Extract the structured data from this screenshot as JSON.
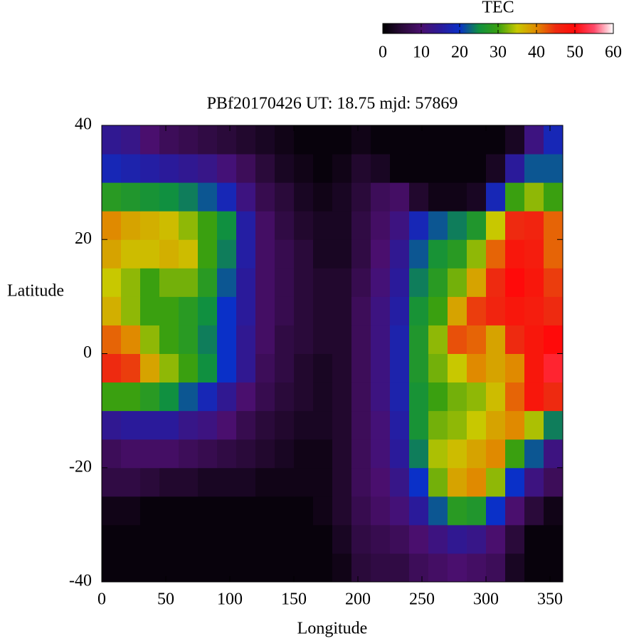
{
  "chart_data": {
    "type": "heatmap",
    "title": "PBf20170426  UT: 18.75  mjd: 57869",
    "xlabel": "Longitude",
    "ylabel": "Latitude",
    "colorbar_label": "TEC",
    "x": [
      0,
      15,
      30,
      45,
      60,
      75,
      90,
      105,
      120,
      135,
      150,
      165,
      180,
      195,
      210,
      225,
      240,
      255,
      270,
      285,
      300,
      315,
      330,
      345
    ],
    "y": [
      -40,
      -35,
      -30,
      -25,
      -20,
      -15,
      -10,
      -5,
      0,
      5,
      10,
      15,
      20,
      25,
      30,
      35
    ],
    "z": [
      [
        1,
        1,
        1,
        1,
        1,
        1,
        1,
        1,
        1,
        1,
        1,
        1,
        2,
        5,
        6,
        6,
        8,
        9,
        10,
        9,
        8,
        3,
        1,
        1
      ],
      [
        1,
        1,
        1,
        1,
        1,
        1,
        1,
        1,
        1,
        1,
        1,
        1,
        3,
        6,
        7,
        8,
        10,
        12,
        14,
        13,
        10,
        5,
        1,
        1
      ],
      [
        2,
        2,
        1,
        1,
        1,
        1,
        1,
        1,
        1,
        1,
        1,
        2,
        4,
        7,
        9,
        11,
        15,
        22,
        28,
        27,
        20,
        10,
        5,
        2
      ],
      [
        6,
        6,
        5,
        4,
        4,
        3,
        3,
        3,
        2,
        2,
        2,
        2,
        4,
        8,
        10,
        13,
        20,
        32,
        38,
        40,
        33,
        20,
        12,
        8
      ],
      [
        8,
        9,
        9,
        9,
        8,
        7,
        6,
        5,
        4,
        3,
        2,
        2,
        4,
        8,
        11,
        15,
        24,
        34,
        36,
        38,
        40,
        30,
        22,
        12
      ],
      [
        14,
        15,
        15,
        15,
        13,
        12,
        10,
        7,
        5,
        4,
        3,
        3,
        4,
        8,
        11,
        16,
        26,
        32,
        33,
        35,
        38,
        40,
        34,
        24
      ],
      [
        30,
        30,
        28,
        25,
        22,
        18,
        14,
        10,
        7,
        5,
        4,
        3,
        4,
        8,
        12,
        17,
        26,
        30,
        32,
        33,
        36,
        42,
        48,
        45
      ],
      [
        45,
        44,
        38,
        33,
        30,
        25,
        20,
        14,
        8,
        6,
        4,
        3,
        4,
        8,
        12,
        17,
        27,
        32,
        35,
        40,
        38,
        40,
        48,
        52
      ],
      [
        42,
        40,
        33,
        30,
        28,
        24,
        20,
        14,
        9,
        6,
        5,
        4,
        4,
        8,
        12,
        17,
        27,
        33,
        43,
        42,
        38,
        45,
        48,
        50
      ],
      [
        37,
        33,
        30,
        30,
        28,
        25,
        20,
        15,
        9,
        7,
        5,
        4,
        4,
        8,
        12,
        16,
        26,
        30,
        38,
        44,
        46,
        48,
        47,
        45
      ],
      [
        35,
        33,
        30,
        32,
        32,
        28,
        22,
        15,
        9,
        7,
        5,
        4,
        4,
        7,
        11,
        15,
        24,
        28,
        32,
        38,
        45,
        50,
        48,
        44
      ],
      [
        38,
        36,
        36,
        37,
        36,
        30,
        24,
        16,
        9,
        7,
        5,
        3,
        3,
        6,
        10,
        14,
        22,
        26,
        28,
        33,
        42,
        48,
        47,
        42
      ],
      [
        40,
        38,
        37,
        36,
        33,
        30,
        25,
        16,
        9,
        6,
        4,
        3,
        3,
        6,
        9,
        12,
        18,
        22,
        24,
        27,
        35,
        45,
        46,
        42
      ],
      [
        28,
        27,
        26,
        25,
        24,
        22,
        18,
        12,
        7,
        5,
        3,
        2,
        3,
        5,
        8,
        9,
        4,
        2,
        2,
        3,
        18,
        30,
        33,
        30
      ],
      [
        18,
        17,
        16,
        15,
        14,
        13,
        11,
        8,
        5,
        3,
        2,
        1,
        2,
        4,
        3,
        1,
        1,
        1,
        1,
        1,
        3,
        15,
        22,
        22
      ],
      [
        14,
        13,
        10,
        8,
        7,
        6,
        5,
        4,
        3,
        2,
        1,
        1,
        1,
        2,
        1,
        1,
        1,
        1,
        1,
        1,
        1,
        3,
        12,
        18
      ]
    ],
    "xlim": [
      0,
      360
    ],
    "ylim": [
      -40,
      40
    ],
    "xticks": [
      0,
      50,
      100,
      150,
      200,
      250,
      300,
      350
    ],
    "yticks": [
      -40,
      -20,
      0,
      20,
      40
    ],
    "zlim": [
      0,
      60
    ],
    "zticks": [
      0,
      10,
      20,
      30,
      40,
      50,
      60
    ],
    "colorscale": [
      "#000000",
      "#2a0a3a",
      "#4a0f6e",
      "#2a1a9a",
      "#0a30c8",
      "#109040",
      "#3aa010",
      "#c8c800",
      "#e08a00",
      "#ee2a10",
      "#ff0a0a",
      "#ff4a6a",
      "#ffffff"
    ]
  }
}
